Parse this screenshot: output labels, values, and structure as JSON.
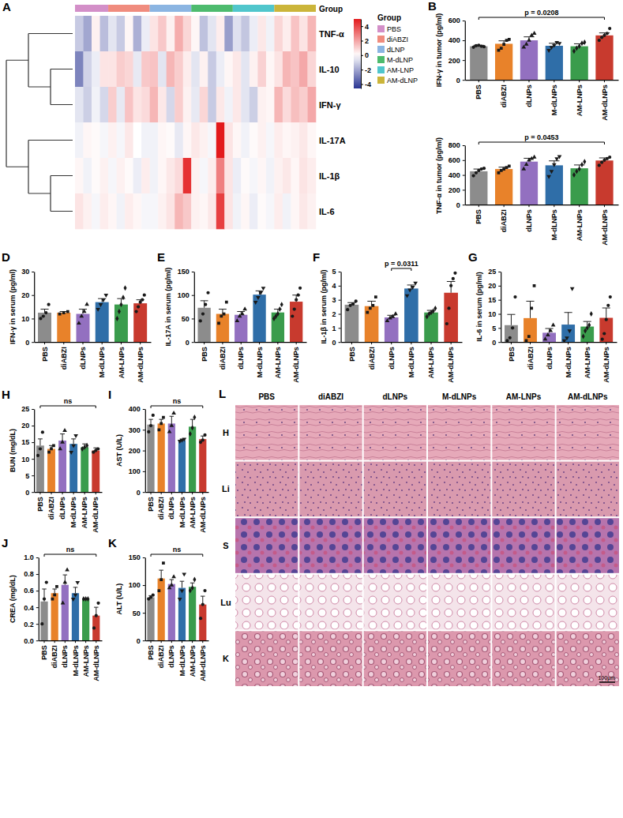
{
  "chart_data": [
    {
      "type": "heatmap",
      "panel": "A",
      "annotation_label": "Group",
      "legend_title": "Group",
      "legend": "right",
      "groups": [
        {
          "name": "PBS",
          "color": "#d38fc8"
        },
        {
          "name": "diABZI",
          "color": "#f08c7e"
        },
        {
          "name": "dLNP",
          "color": "#8bb5e2"
        },
        {
          "name": "M-dLNP",
          "color": "#4dbb6e"
        },
        {
          "name": "AM-LNP",
          "color": "#50c6cc"
        },
        {
          "name": "AM-dLNP",
          "color": "#cbb53a"
        }
      ],
      "rows": [
        "TNF-α",
        "IL-10",
        "IFN-γ",
        "IL-17A",
        "IL-1β",
        "IL-6"
      ],
      "dendrogram": [
        [
          0,
          [
            1,
            2
          ]
        ],
        [
          3,
          [
            4,
            5
          ]
        ]
      ],
      "cells": [
        [
          [
            -1.2,
            -2.0,
            0.3,
            -1.5
          ],
          [
            -0.6,
            -1.2,
            0.2,
            -1.8,
            -0.4
          ],
          [
            0.6,
            1.2,
            0.3,
            1.8,
            0.9
          ],
          [
            0.2,
            -1.4,
            -0.6,
            0.4,
            -2.2
          ],
          [
            -0.7,
            -1.3,
            -0.4,
            0.5,
            -0.3
          ],
          [
            0.9,
            0.4,
            1.3,
            0.6,
            1.6
          ]
        ],
        [
          [
            -2.8,
            -1.0,
            -0.4,
            0.6
          ],
          [
            0.6,
            1.1,
            0.9,
            -0.5,
            1.2
          ],
          [
            1.3,
            -0.6,
            1.6,
            1.1,
            0.4
          ],
          [
            -0.6,
            0.3,
            -1.2,
            -0.4,
            0.2
          ],
          [
            0.5,
            -0.6,
            0.3,
            1.0,
            0.2
          ],
          [
            0.6,
            1.6,
            1.3,
            1.9,
            0.9
          ]
        ],
        [
          [
            -0.6,
            -1.1,
            -0.3,
            -0.9
          ],
          [
            1.1,
            -0.5,
            1.3,
            0.6,
            0.8
          ],
          [
            1.6,
            0.5,
            -0.9,
            1.1,
            0.3
          ],
          [
            -0.5,
            0.9,
            -1.2,
            0.5,
            -0.3
          ],
          [
            0.5,
            -0.6,
            -1.1,
            0.3,
            0.2
          ],
          [
            1.6,
            0.8,
            1.4,
            1.1,
            1.9
          ]
        ],
        [
          [
            -0.3,
            0.2,
            0.1,
            -0.2
          ],
          [
            0.3,
            -0.2,
            0.5,
            0.0,
            -0.3
          ],
          [
            -0.3,
            0.2,
            0.1,
            -0.5,
            0.2
          ],
          [
            0.5,
            0.3,
            -0.2,
            5.0,
            0.6
          ],
          [
            0.2,
            -0.3,
            0.1,
            0.3,
            -0.2
          ],
          [
            0.4,
            0.2,
            0.3,
            0.5,
            0.2
          ]
        ],
        [
          [
            0.2,
            -0.3,
            0.1,
            0.3
          ],
          [
            -0.2,
            0.3,
            0.1,
            -0.4,
            0.4
          ],
          [
            -0.3,
            0.2,
            0.5,
            0.8,
            4.5
          ],
          [
            0.3,
            -0.2,
            0.4,
            2.8,
            0.6
          ],
          [
            -0.4,
            0.1,
            -0.2,
            0.2,
            -0.3
          ],
          [
            0.3,
            0.5,
            0.2,
            0.6,
            0.4
          ]
        ],
        [
          [
            0.6,
            0.3,
            -0.2,
            0.4
          ],
          [
            0.2,
            -0.3,
            0.4,
            0.2,
            -0.2
          ],
          [
            -0.2,
            0.3,
            0.6,
            1.6,
            1.2
          ],
          [
            0.3,
            0.2,
            0.5,
            4.2,
            0.6
          ],
          [
            -0.3,
            0.2,
            -0.4,
            0.1,
            -0.2
          ],
          [
            0.4,
            -0.3,
            0.2,
            0.5,
            0.3
          ]
        ]
      ],
      "zlim": [
        -4.6,
        5
      ],
      "zticks": [
        4,
        2,
        0,
        -2,
        -4
      ]
    },
    {
      "type": "bar",
      "panel": "B",
      "ylabel": "IFN-γ in tumor (pg/ml)",
      "categories": [
        "PBS",
        "diABZI",
        "dLNPs",
        "M-dLNPs",
        "AM-LNPs",
        "AM-dLNPs"
      ],
      "colors": [
        "#8c8c8c",
        "#e8822a",
        "#9370c0",
        "#2f6ea8",
        "#3a9c4c",
        "#c83a2e"
      ],
      "values": [
        340,
        365,
        400,
        345,
        340,
        450
      ],
      "errors": [
        10,
        30,
        35,
        25,
        25,
        25
      ],
      "points": [
        [
          330,
          345,
          350,
          340,
          335
        ],
        [
          300,
          320,
          360,
          400,
          410
        ],
        [
          330,
          360,
          400,
          450,
          470
        ],
        [
          300,
          330,
          350,
          380,
          370
        ],
        [
          290,
          320,
          340,
          370,
          380
        ],
        [
          400,
          430,
          450,
          470,
          520
        ]
      ],
      "ylim": [
        0,
        600
      ],
      "yticks": [
        0,
        200,
        400,
        600
      ],
      "brackets": [
        {
          "text": "p = 0.0208",
          "from": "PBS",
          "to": "AM-dLNPs"
        }
      ]
    },
    {
      "type": "bar",
      "ylabel": "TNF-α in tumor (pg/ml)",
      "categories": [
        "PBS",
        "diABZI",
        "dLNPs",
        "M-dLNPs",
        "AM-LNPs",
        "AM-dLNPs"
      ],
      "colors": [
        "#8c8c8c",
        "#e8822a",
        "#9370c0",
        "#2f6ea8",
        "#3a9c4c",
        "#c83a2e"
      ],
      "values": [
        450,
        480,
        580,
        530,
        490,
        595
      ],
      "errors": [
        30,
        25,
        45,
        60,
        45,
        35
      ],
      "points": [
        [
          390,
          430,
          460,
          480,
          490
        ],
        [
          430,
          460,
          480,
          500,
          520
        ],
        [
          480,
          540,
          600,
          620,
          640
        ],
        [
          380,
          450,
          540,
          620,
          650
        ],
        [
          400,
          450,
          480,
          540,
          580
        ],
        [
          530,
          570,
          600,
          620,
          640
        ]
      ],
      "ylim": [
        0,
        800
      ],
      "yticks": [
        0,
        200,
        400,
        600,
        800
      ],
      "brackets": [
        {
          "text": "p = 0.0453",
          "from": "PBS",
          "to": "AM-dLNPs"
        }
      ]
    },
    {
      "type": "bar",
      "panel": "D",
      "ylabel": "IFN-γ in serum (pg/ml)",
      "categories": [
        "PBS",
        "diABZI",
        "dLNPs",
        "M-dLNPs",
        "AM-LNPs",
        "AM-dLNPs"
      ],
      "colors": [
        "#8c8c8c",
        "#e8822a",
        "#9370c0",
        "#2f6ea8",
        "#3a9c4c",
        "#c83a2e"
      ],
      "values": [
        12.5,
        12.5,
        12,
        17,
        16,
        16.5
      ],
      "errors": [
        1.5,
        0.5,
        2,
        1.5,
        2.5,
        1.5
      ],
      "points": [
        [
          10,
          11,
          12.5,
          16
        ],
        [
          12,
          12.5,
          13
        ],
        [
          8,
          11,
          13,
          16
        ],
        [
          14,
          16,
          18,
          20
        ],
        [
          10,
          13,
          16,
          19,
          23
        ],
        [
          13,
          15,
          17,
          18,
          20
        ]
      ],
      "ylim": [
        0,
        30
      ],
      "yticks": [
        0,
        10,
        20,
        30
      ]
    },
    {
      "type": "bar",
      "panel": "E",
      "ylabel": "IL-17A in serum (pg/ml)",
      "categories": [
        "PBS",
        "diABZI",
        "dLNPs",
        "M-dLNPs",
        "AM-LNPs",
        "AM-dLNPs"
      ],
      "colors": [
        "#8c8c8c",
        "#e8822a",
        "#9370c0",
        "#2f6ea8",
        "#3a9c4c",
        "#c83a2e"
      ],
      "values": [
        73,
        60,
        58,
        101,
        63,
        86
      ],
      "errors": [
        15,
        10,
        7,
        8,
        7,
        14
      ],
      "points": [
        [
          45,
          60,
          80,
          105
        ],
        [
          40,
          55,
          60,
          85
        ],
        [
          45,
          55,
          60,
          70
        ],
        [
          85,
          95,
          105,
          115
        ],
        [
          50,
          55,
          60,
          70,
          80
        ],
        [
          55,
          70,
          90,
          100,
          115
        ]
      ],
      "ylim": [
        0,
        150
      ],
      "yticks": [
        0,
        50,
        100,
        150
      ]
    },
    {
      "type": "bar",
      "panel": "F",
      "ylabel": "IL-1β in serum (pg/ml)",
      "categories": [
        "PBS",
        "diABZI",
        "dLNPs",
        "M-dLNPs",
        "AM-LNPs",
        "AM-dLNPs"
      ],
      "colors": [
        "#8c8c8c",
        "#e8822a",
        "#9370c0",
        "#2f6ea8",
        "#3a9c4c",
        "#c83a2e"
      ],
      "values": [
        2.65,
        2.55,
        1.75,
        3.8,
        2.1,
        3.5
      ],
      "errors": [
        0.15,
        0.35,
        0.15,
        0.25,
        0.15,
        0.8
      ],
      "points": [
        [
          2.3,
          2.6,
          2.7,
          2.9
        ],
        [
          2.1,
          2.4,
          2.6,
          3.2
        ],
        [
          1.5,
          1.7,
          1.8,
          2.0
        ],
        [
          3.3,
          3.7,
          3.9,
          4.2
        ],
        [
          1.8,
          2.0,
          2.1,
          2.2,
          2.4
        ],
        [
          1.3,
          2.4,
          4.0,
          4.5,
          4.9
        ]
      ],
      "ylim": [
        0,
        5
      ],
      "yticks": [
        0,
        1,
        2,
        3,
        4,
        5
      ],
      "brackets": [
        {
          "text": "p = 0.0311",
          "from": "dLNPs",
          "to": "M-dLNPs"
        }
      ]
    },
    {
      "type": "bar",
      "panel": "G",
      "ylabel": "IL-6 in serum (pg/ml)",
      "categories": [
        "PBS",
        "diABZI",
        "dLNPs",
        "M-dLNPs",
        "AM-LNPs",
        "AM-dLNPs"
      ],
      "colors": [
        "#8c8c8c",
        "#e8822a",
        "#9370c0",
        "#2f6ea8",
        "#3a9c4c",
        "#c83a2e"
      ],
      "values": [
        6,
        8.5,
        3.3,
        6.2,
        5.5,
        8.6
      ],
      "errors": [
        3.8,
        6,
        1.5,
        4.3,
        1.8,
        3.5
      ],
      "points": [
        [
          0.5,
          1.5,
          5,
          16
        ],
        [
          0.5,
          2,
          12,
          20
        ],
        [
          1,
          2.5,
          4,
          6
        ],
        [
          0.5,
          1.5,
          4,
          19
        ],
        [
          2,
          4,
          5,
          6,
          10
        ],
        [
          1,
          3,
          8,
          13,
          16
        ]
      ],
      "ylim": [
        0,
        25
      ],
      "yticks": [
        0,
        5,
        10,
        15,
        20,
        25
      ]
    },
    {
      "type": "bar",
      "panel": "H",
      "ylabel": "BUN (mg/dL)",
      "categories": [
        "PBS",
        "diABZI",
        "dLNPs",
        "M-dLNPs",
        "AM-LNPs",
        "AM-dLNPs"
      ],
      "colors": [
        "#8c8c8c",
        "#e8822a",
        "#9370c0",
        "#2f6ea8",
        "#3a9c4c",
        "#c83a2e"
      ],
      "values": [
        14,
        13,
        15.5,
        14.5,
        13.5,
        12.5
      ],
      "errors": [
        2,
        1,
        2,
        1.5,
        1,
        0.8
      ],
      "points": [
        [
          11,
          13,
          18
        ],
        [
          12,
          13,
          14
        ],
        [
          13,
          15,
          18.5
        ],
        [
          12,
          14,
          17
        ],
        [
          13,
          13.5,
          14
        ],
        [
          12,
          12.5,
          13
        ]
      ],
      "ylim": [
        0,
        25
      ],
      "yticks": [
        0,
        5,
        10,
        15,
        20,
        25
      ],
      "brackets": [
        {
          "text": "ns",
          "from": "PBS",
          "to": "AM-dLNPs"
        }
      ]
    },
    {
      "type": "bar",
      "panel": "I",
      "ylabel": "AST (U/L)",
      "categories": [
        "PBS",
        "diABZI",
        "dLNPs",
        "M-dLNPs",
        "AM-LNPs",
        "AM-dLNPs"
      ],
      "colors": [
        "#8c8c8c",
        "#e8822a",
        "#9370c0",
        "#2f6ea8",
        "#3a9c4c",
        "#c83a2e"
      ],
      "values": [
        325,
        330,
        330,
        250,
        315,
        255
      ],
      "errors": [
        25,
        20,
        35,
        5,
        35,
        15
      ],
      "points": [
        [
          290,
          320,
          370
        ],
        [
          300,
          330,
          360
        ],
        [
          290,
          320,
          380
        ],
        [
          245,
          250,
          255
        ],
        [
          280,
          310,
          360
        ],
        [
          240,
          250,
          275
        ]
      ],
      "ylim": [
        0,
        400
      ],
      "yticks": [
        0,
        100,
        200,
        300,
        400
      ],
      "brackets": [
        {
          "text": "ns",
          "from": "PBS",
          "to": "AM-dLNPs"
        }
      ]
    },
    {
      "type": "bar",
      "panel": "J",
      "ylabel": "CREA (mg/dL)",
      "categories": [
        "PBS",
        "diABZI",
        "dLNPs",
        "M-dLNPs",
        "AM-LNPs",
        "AM-dLNPs"
      ],
      "colors": [
        "#8c8c8c",
        "#e8822a",
        "#9370c0",
        "#2f6ea8",
        "#3a9c4c",
        "#c83a2e"
      ],
      "values": [
        0.47,
        0.57,
        0.67,
        0.57,
        0.5,
        0.3
      ],
      "errors": [
        0.15,
        0.05,
        0.12,
        0.07,
        0,
        0.1
      ],
      "points": [
        [
          0.2,
          0.5,
          0.7
        ],
        [
          0.5,
          0.55,
          0.65
        ],
        [
          0.45,
          0.7,
          0.85
        ],
        [
          0.5,
          0.55,
          0.7
        ],
        [
          0.5,
          0.5,
          0.5
        ],
        [
          0.15,
          0.3,
          0.45
        ]
      ],
      "ylim": [
        0,
        1
      ],
      "yticks": [
        {
          "value": 0,
          "label": "0.0"
        },
        0.2,
        0.4,
        0.6,
        0.8,
        {
          "value": 1,
          "label": "1.0"
        }
      ],
      "brackets": [
        {
          "text": "ns",
          "from": "PBS",
          "to": "AM-dLNPs"
        }
      ]
    },
    {
      "type": "bar",
      "panel": "K",
      "ylabel": "ALT (U/L)",
      "categories": [
        "PBS",
        "diABZI",
        "dLNPs",
        "M-dLNPs",
        "AM-LNPs",
        "AM-dLNPs"
      ],
      "colors": [
        "#8c8c8c",
        "#e8822a",
        "#9370c0",
        "#2f6ea8",
        "#3a9c4c",
        "#c83a2e"
      ],
      "values": [
        78,
        112,
        102,
        95,
        97,
        65
      ],
      "errors": [
        3,
        15,
        8,
        12,
        7,
        15
      ],
      "points": [
        [
          75,
          78,
          82
        ],
        [
          90,
          110,
          140
        ],
        [
          95,
          100,
          115
        ],
        [
          75,
          90,
          120
        ],
        [
          90,
          95,
          110
        ],
        [
          40,
          65,
          90
        ]
      ],
      "ylim": [
        0,
        150
      ],
      "yticks": [
        0,
        50,
        100,
        150
      ],
      "brackets": [
        {
          "text": "ns",
          "from": "PBS",
          "to": "AM-dLNPs"
        }
      ]
    }
  ],
  "histology": {
    "panel": "L",
    "columns": [
      "PBS",
      "diABZI",
      "dLNPs",
      "M-dLNPs",
      "AM-LNPs",
      "AM-dLNPs"
    ],
    "rows": [
      "H",
      "Li",
      "S",
      "Lu",
      "K"
    ],
    "scale_bar": "100μm"
  }
}
